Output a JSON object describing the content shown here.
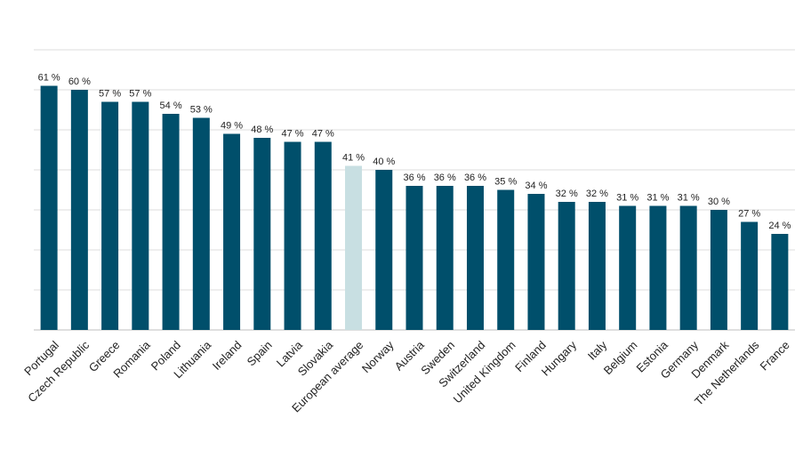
{
  "chart_data": {
    "type": "bar",
    "title": "",
    "xlabel": "",
    "ylabel": "",
    "ylim": [
      0,
      70
    ],
    "grid": true,
    "legend": "none",
    "value_suffix": " %",
    "colors": {
      "bar": "#004f6b",
      "highlight": "#c8dfe2"
    },
    "highlight_category": "European average",
    "categories": [
      "Portugal",
      "Czech Republic",
      "Greece",
      "Romania",
      "Poland",
      "Lithuania",
      "Ireland",
      "Spain",
      "Latvia",
      "Slovakia",
      "European average",
      "Norway",
      "Austria",
      "Sweden",
      "Switzerland",
      "United Kingdom",
      "Finland",
      "Hungary",
      "Italy",
      "Belgium",
      "Estonia",
      "Germany",
      "Denmark",
      "The Netherlands",
      "France"
    ],
    "values": [
      61,
      60,
      57,
      57,
      54,
      53,
      49,
      48,
      47,
      47,
      41,
      40,
      36,
      36,
      36,
      35,
      34,
      32,
      32,
      31,
      31,
      31,
      30,
      27,
      24
    ]
  }
}
